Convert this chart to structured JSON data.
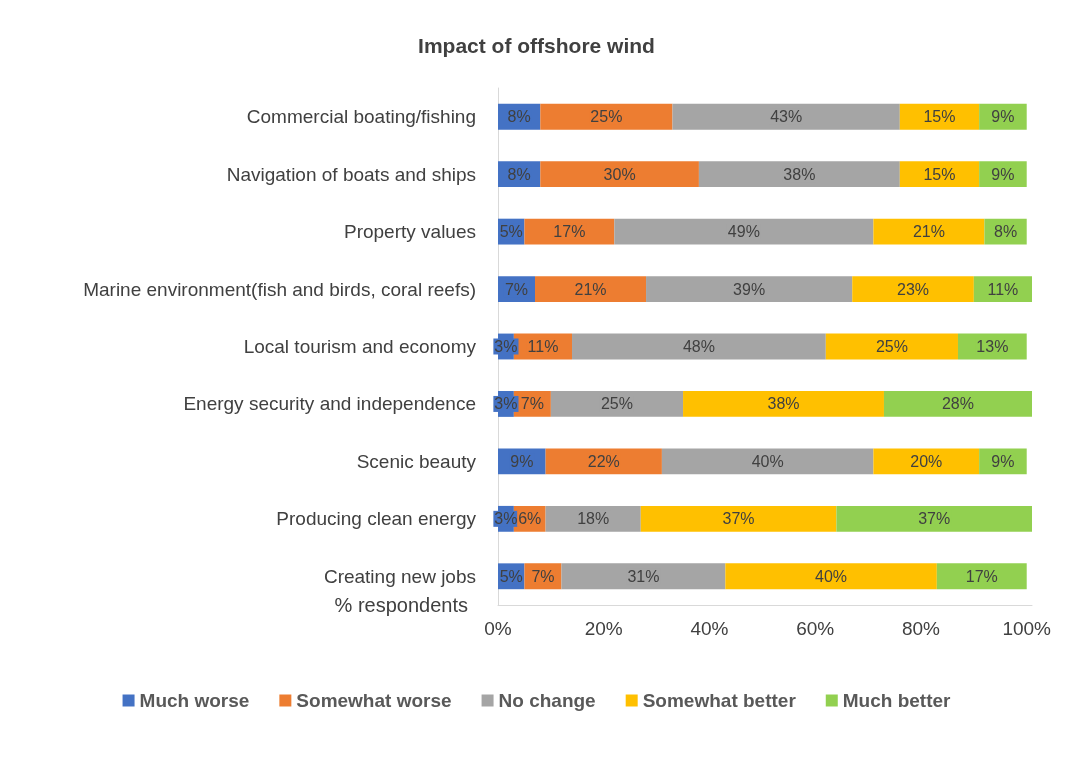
{
  "chart_data": {
    "type": "bar",
    "orientation": "horizontal",
    "stacked": true,
    "title": "Impact of offshore wind",
    "xlabel": "% respondents",
    "categories": [
      "Commercial boating/fishing",
      "Navigation of boats and ships",
      "Property values",
      "Marine environment(fish and birds, coral reefs)",
      "Local tourism and economy",
      "Energy security and independence",
      "Scenic beauty",
      "Producing clean energy",
      "Creating new jobs"
    ],
    "series": [
      {
        "name": "Much worse",
        "color": "#4472c4",
        "values": [
          8,
          8,
          5,
          7,
          3,
          3,
          9,
          3,
          5
        ],
        "value_labels": [
          "8%",
          "8%",
          "5%",
          "7%",
          "3%",
          "3%",
          "9%",
          "3%",
          "5%"
        ]
      },
      {
        "name": "Somewhat worse",
        "color": "#ed7d31",
        "values": [
          25,
          30,
          17,
          21,
          11,
          7,
          22,
          6,
          7
        ],
        "value_labels": [
          "25%",
          "30%",
          "17%",
          "21%",
          "11%",
          "7%",
          "22%",
          "6%",
          "7%"
        ]
      },
      {
        "name": "No change",
        "color": "#a5a5a5",
        "values": [
          43,
          38,
          49,
          39,
          48,
          25,
          40,
          18,
          31
        ],
        "value_labels": [
          "43%",
          "38%",
          "49%",
          "39%",
          "48%",
          "25%",
          "40%",
          "18%",
          "31%"
        ]
      },
      {
        "name": "Somewhat better",
        "color": "#ffc000",
        "values": [
          15,
          15,
          21,
          23,
          25,
          38,
          20,
          37,
          40
        ],
        "value_labels": [
          "15%",
          "15%",
          "21%",
          "23%",
          "25%",
          "38%",
          "20%",
          "37%",
          "40%"
        ]
      },
      {
        "name": "Much better",
        "color": "#92d050",
        "values": [
          9,
          9,
          8,
          11,
          13,
          28,
          9,
          37,
          17
        ],
        "value_labels": [
          "9%",
          "9%",
          "8%",
          "11%",
          "13%",
          "28%",
          "9%",
          "37%",
          "17%"
        ]
      }
    ],
    "xlim": [
      0,
      101
    ],
    "xticks": [
      {
        "value": 0,
        "label": "0%"
      },
      {
        "value": 20,
        "label": "20%"
      },
      {
        "value": 40,
        "label": "40%"
      },
      {
        "value": 60,
        "label": "60%"
      },
      {
        "value": 80,
        "label": "80%"
      },
      {
        "value": 100,
        "label": "100%"
      }
    ],
    "grid": false,
    "legend": "bottom"
  }
}
